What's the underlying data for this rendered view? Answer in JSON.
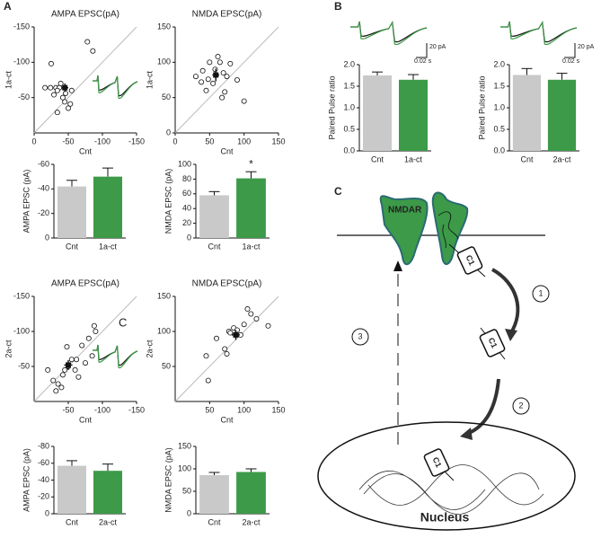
{
  "panel_labels": [
    "A",
    "B",
    "C"
  ],
  "chart_data": [
    {
      "type": "scatter",
      "title": "AMPA EPSC(pA)",
      "xlabel": "Cnt",
      "ylabel": "1a-ct",
      "xlim": [
        0,
        -150
      ],
      "ylim": [
        0,
        -150
      ],
      "xticks": [
        0,
        -50,
        -100,
        -150
      ],
      "yticks": [
        -50,
        -100,
        -150
      ],
      "x": [
        -25,
        -16,
        -24,
        -32,
        -37,
        -34,
        -29,
        -42,
        -46,
        -45,
        -53,
        -50,
        -34,
        -55,
        -39,
        -78,
        -86
      ],
      "y": [
        -98,
        -64,
        -64,
        -64,
        -64,
        -60,
        -54,
        -50,
        -56,
        -44,
        -41,
        -35,
        -29,
        -60,
        -70,
        -129,
        -116
      ],
      "mean": {
        "x": -45,
        "y": -64,
        "xerr": 5,
        "yerr": 6
      }
    },
    {
      "type": "scatter",
      "title": "NMDA EPSC(pA)",
      "xlabel": "Cnt",
      "ylabel": "1a-ct",
      "xlim": [
        0,
        150
      ],
      "ylim": [
        0,
        150
      ],
      "xticks": [
        0,
        50,
        100,
        150
      ],
      "yticks": [
        0,
        50,
        100,
        150
      ],
      "x": [
        30,
        38,
        40,
        45,
        48,
        50,
        55,
        58,
        62,
        65,
        68,
        70,
        72,
        75,
        80,
        90,
        100
      ],
      "y": [
        80,
        72,
        88,
        60,
        76,
        100,
        70,
        90,
        108,
        100,
        50,
        85,
        58,
        80,
        98,
        75,
        45
      ],
      "mean": {
        "x": 59,
        "y": 82,
        "xerr": 5,
        "yerr": 9
      }
    },
    {
      "type": "bar",
      "ylabel": "AMPA EPSC (pA)",
      "categories": [
        "Cnt",
        "1a-ct"
      ],
      "values": [
        -42,
        -50
      ],
      "errors": [
        5,
        7
      ],
      "colors": [
        "#c9c9c9",
        "#3c9a48"
      ],
      "ylim": [
        0,
        -60
      ],
      "yticks": [
        0,
        -20,
        -40,
        -60
      ]
    },
    {
      "type": "bar",
      "ylabel": "NMDA EPSC (pA)",
      "categories": [
        "Cnt",
        "1a-ct"
      ],
      "values": [
        58,
        81
      ],
      "errors": [
        5,
        9
      ],
      "colors": [
        "#c9c9c9",
        "#3c9a48"
      ],
      "ylim": [
        0,
        100
      ],
      "yticks": [
        0,
        20,
        40,
        60,
        80,
        100
      ],
      "annotation": "*"
    },
    {
      "type": "scatter",
      "title": "AMPA EPSC(pA)",
      "xlabel": "Cnt",
      "ylabel": "2a-ct",
      "xlim": [
        0,
        -150
      ],
      "ylim": [
        0,
        -150
      ],
      "xticks": [
        -50,
        -100,
        -150
      ],
      "yticks": [
        -50,
        -100,
        -150
      ],
      "x": [
        -20,
        -28,
        -32,
        -35,
        -40,
        -42,
        -45,
        -48,
        -50,
        -55,
        -60,
        -62,
        -65,
        -70,
        -75,
        -80,
        -85,
        -88,
        -90
      ],
      "y": [
        -45,
        -30,
        -15,
        -25,
        -20,
        -38,
        -45,
        -78,
        -50,
        -60,
        -45,
        -60,
        -35,
        -80,
        -55,
        -90,
        -65,
        -108,
        -100
      ],
      "mean": {
        "x": -50,
        "y": -52,
        "xerr": 6,
        "yerr": 7
      },
      "annotation": "C"
    },
    {
      "type": "scatter",
      "title": "NMDA EPSC(pA)",
      "xlabel": "Cnt",
      "ylabel": "2a-ct",
      "xlim": [
        0,
        150
      ],
      "ylim": [
        0,
        150
      ],
      "xticks": [
        50,
        100,
        150
      ],
      "yticks": [
        50,
        100,
        150
      ],
      "x": [
        45,
        48,
        60,
        72,
        75,
        78,
        80,
        85,
        90,
        95,
        100,
        105,
        110,
        118,
        135
      ],
      "y": [
        65,
        30,
        90,
        75,
        68,
        100,
        98,
        105,
        102,
        95,
        110,
        132,
        125,
        118,
        108
      ],
      "mean": {
        "x": 88,
        "y": 95,
        "xerr": 6,
        "yerr": 7
      }
    },
    {
      "type": "bar",
      "ylabel": "AMPA EPSC (pA)",
      "categories": [
        "Cnt",
        "2a-ct"
      ],
      "values": [
        -57,
        -51
      ],
      "errors": [
        6,
        8
      ],
      "colors": [
        "#c9c9c9",
        "#3c9a48"
      ],
      "ylim": [
        0,
        -80
      ],
      "yticks": [
        0,
        -20,
        -40,
        -60,
        -80
      ]
    },
    {
      "type": "bar",
      "ylabel": "NMDA EPSC (pA)",
      "categories": [
        "Cnt",
        "2a-ct"
      ],
      "values": [
        86,
        93
      ],
      "errors": [
        6,
        7
      ],
      "colors": [
        "#c9c9c9",
        "#3c9a48"
      ],
      "ylim": [
        0,
        150
      ],
      "yticks": [
        0,
        50,
        100,
        150
      ]
    },
    {
      "type": "bar",
      "ylabel": "Paired Pulse ratio",
      "categories": [
        "Cnt",
        "1a-ct"
      ],
      "values": [
        1.75,
        1.65
      ],
      "errors": [
        0.08,
        0.12
      ],
      "colors": [
        "#c9c9c9",
        "#3c9a48"
      ],
      "ylim": [
        0,
        2.0
      ],
      "yticks": [
        {
          "value": 0,
          "label": "0.0"
        },
        0.5,
        {
          "value": 1,
          "label": "1.0"
        },
        1.5,
        {
          "value": 2,
          "label": "2.0"
        }
      ],
      "scale_bar": {
        "amplitude": "20 pA",
        "time": "0.02 s"
      }
    },
    {
      "type": "bar",
      "ylabel": "Paired Pulse ratio",
      "categories": [
        "Cnt",
        "2a-ct"
      ],
      "values": [
        1.76,
        1.65
      ],
      "errors": [
        0.15,
        0.15
      ],
      "colors": [
        "#c9c9c9",
        "#3c9a48"
      ],
      "ylim": [
        0,
        2.0
      ],
      "yticks": [
        {
          "value": 0,
          "label": "0.0"
        },
        0.5,
        {
          "value": 1,
          "label": "1.0"
        },
        1.5,
        {
          "value": 2,
          "label": "2.0"
        }
      ],
      "scale_bar": {
        "amplitude": "20 pA",
        "time": "0.02 s"
      }
    }
  ],
  "diagram": {
    "receptor": "NMDAR",
    "protein": "C1",
    "steps": [
      "1",
      "2",
      "3"
    ],
    "nucleus": "Nucleus"
  }
}
